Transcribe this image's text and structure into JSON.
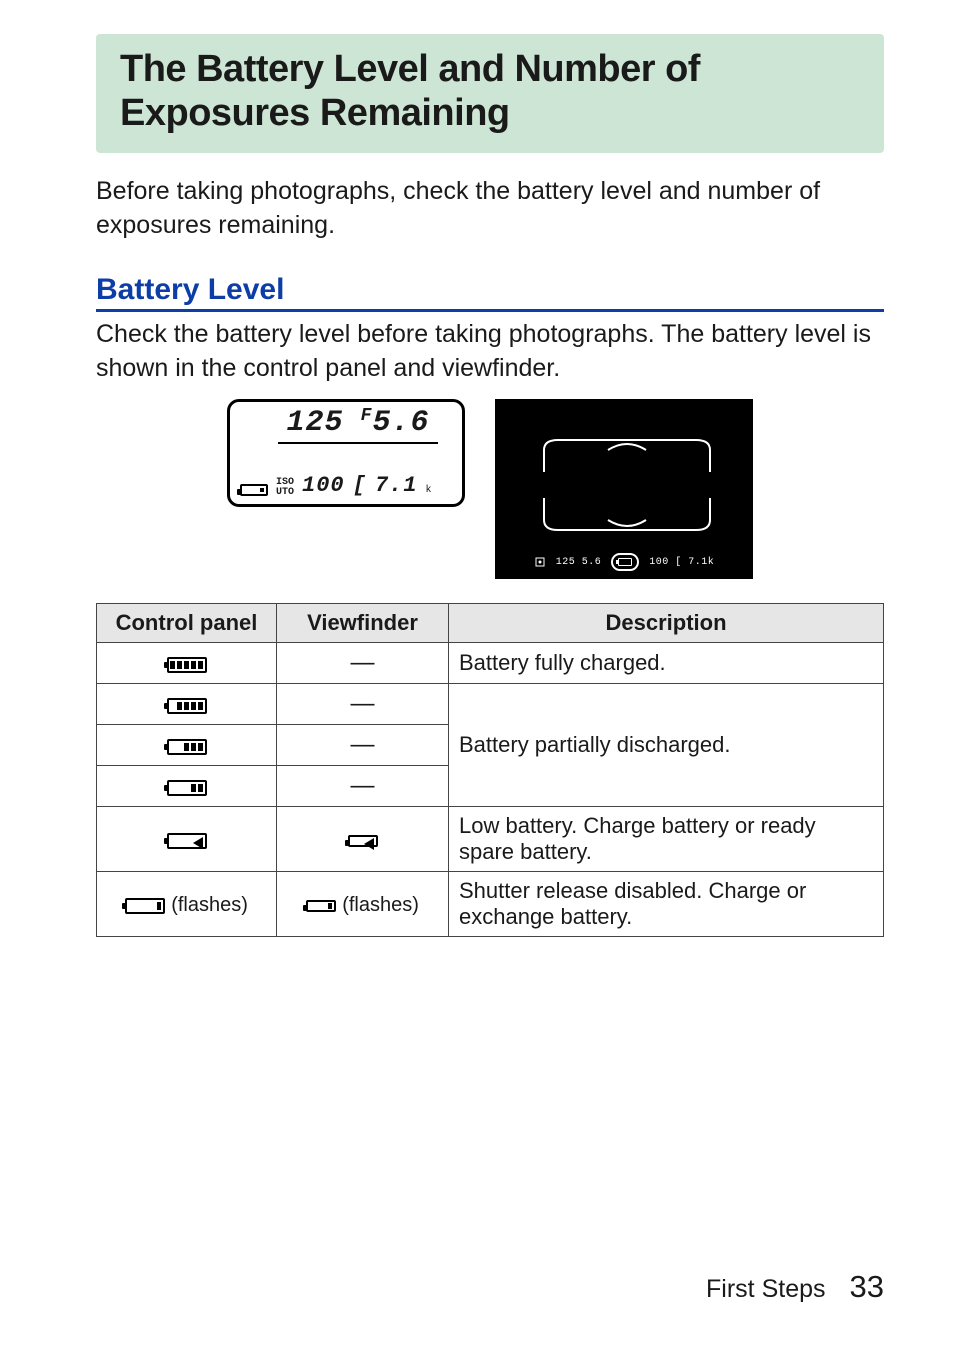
{
  "title": "The Battery Level and Number of Exposures Remaining",
  "intro": "Before taking photographs, check the battery level and number of exposures remaining.",
  "subhead": "Battery Level",
  "sub_intro": "Check the battery level before taking photographs. The battery level is shown in the control panel and viewfinder.",
  "lcd": {
    "shutter": "125",
    "aperture_prefix": "F",
    "aperture": "5.6",
    "iso_label_top": "ISO",
    "iso_label_bottom": "UTO",
    "iso_value": "100",
    "bracket": "[",
    "shots": "7.1",
    "k": "k"
  },
  "vf_strip": {
    "left": "125  5.6",
    "right": "100 [ 7.1k"
  },
  "table": {
    "headers": [
      "Control panel",
      "Viewfinder",
      "Description"
    ],
    "rows": [
      {
        "cp_bars": 5,
        "cp_flash": false,
        "vf_text": "—",
        "vf_icon": false,
        "vf_flash": false,
        "desc": "Battery fully charged."
      },
      {
        "cp_bars": 4,
        "cp_flash": false,
        "vf_text": "—",
        "vf_icon": false,
        "vf_flash": false,
        "desc": "Battery partially discharged.",
        "rowspan": 3
      },
      {
        "cp_bars": 3,
        "cp_flash": false,
        "vf_text": "—",
        "vf_icon": false,
        "vf_flash": false
      },
      {
        "cp_bars": 2,
        "cp_flash": false,
        "vf_text": "—",
        "vf_icon": false,
        "vf_flash": false
      },
      {
        "cp_bars": 1,
        "cp_flash": false,
        "vf_text": "",
        "vf_icon": true,
        "vf_bars": 1,
        "vf_flash": false,
        "desc": "Low battery. Charge battery or ready spare battery."
      },
      {
        "cp_bars": 0,
        "cp_flash": true,
        "vf_text": "",
        "vf_icon": true,
        "vf_bars": 0,
        "vf_flash": true,
        "desc": "Shutter release disabled. Charge or exchange battery."
      }
    ],
    "flash_label": "(flashes)"
  },
  "footer": {
    "label": "First Steps",
    "page": "33"
  },
  "colors": {
    "title_bg": "#cde5d4",
    "subhead_color": "#0d3da6",
    "th_bg": "#e6e6e6",
    "border": "#444444"
  }
}
